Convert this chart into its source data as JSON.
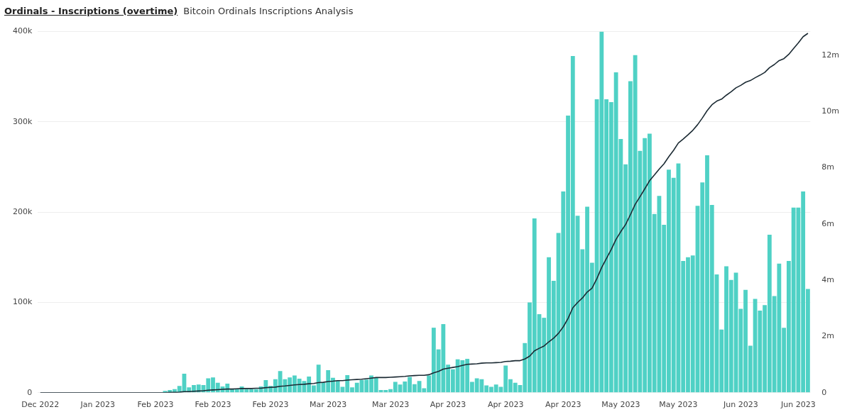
{
  "chart_data": {
    "type": "bar",
    "title": "Ordinals - Inscriptions (overtime)",
    "subtitle": "Bitcoin Ordinals Inscriptions Analysis",
    "categories": [
      "Dec 2022",
      null,
      null,
      null,
      null,
      null,
      null,
      null,
      null,
      null,
      null,
      null,
      "Jan 2023",
      null,
      null,
      null,
      null,
      null,
      null,
      null,
      null,
      null,
      null,
      null,
      "Feb 2023",
      null,
      null,
      null,
      null,
      null,
      null,
      null,
      null,
      null,
      null,
      null,
      "Feb 2023",
      null,
      null,
      null,
      null,
      null,
      null,
      null,
      null,
      null,
      null,
      null,
      "Feb 2023",
      null,
      null,
      null,
      null,
      null,
      null,
      null,
      null,
      null,
      null,
      null,
      "Mar 2023",
      null,
      null,
      null,
      null,
      null,
      null,
      null,
      null,
      null,
      null,
      null,
      null,
      "Mar 2023",
      null,
      null,
      null,
      null,
      null,
      null,
      null,
      null,
      null,
      null,
      null,
      "Apr 2023",
      null,
      null,
      null,
      null,
      null,
      null,
      null,
      null,
      null,
      null,
      null,
      "Apr 2023",
      null,
      null,
      null,
      null,
      null,
      null,
      null,
      null,
      null,
      null,
      null,
      "Apr 2023",
      null,
      null,
      null,
      null,
      null,
      null,
      null,
      null,
      null,
      null,
      null,
      "May 2023",
      null,
      null,
      null,
      null,
      null,
      null,
      null,
      null,
      null,
      null,
      null,
      "May 2023",
      null,
      null,
      null,
      null,
      null,
      null,
      null,
      null,
      null,
      null,
      null,
      null,
      "Jun 2023",
      null,
      null,
      null,
      null,
      null,
      null,
      null,
      null,
      null,
      null,
      null,
      "Jun 2023",
      null,
      null
    ],
    "series": [
      {
        "type": "bar",
        "color": "#4fd1c5",
        "values": [
          0,
          0,
          0,
          0,
          0,
          0,
          0,
          0,
          0,
          0,
          0,
          0,
          0,
          0,
          0,
          0,
          0,
          0,
          0,
          0,
          0,
          0,
          0,
          0,
          0,
          0,
          2000,
          3000,
          4000,
          7500,
          21000,
          6000,
          8500,
          9000,
          8500,
          16000,
          17000,
          11000,
          7000,
          10000,
          4000,
          4000,
          7000,
          4000,
          4000,
          4000,
          7000,
          14000,
          7500,
          15000,
          24000,
          15000,
          17000,
          19000,
          15500,
          13000,
          18000,
          8000,
          31000,
          11000,
          25000,
          16500,
          13500,
          6500,
          19500,
          6000,
          11000,
          14000,
          14500,
          19000,
          17000,
          3000,
          3000,
          4000,
          12000,
          9000,
          12500,
          17500,
          9500,
          13000,
          5000,
          19000,
          72000,
          48000,
          76000,
          31000,
          26000,
          37000,
          36000,
          37500,
          12000,
          16000,
          15000,
          8000,
          6500,
          9000,
          6500,
          30000,
          15000,
          11000,
          8500,
          55000,
          100000,
          193000,
          87000,
          83000,
          150000,
          124000,
          177000,
          223000,
          307000,
          373000,
          196000,
          159000,
          206000,
          144000,
          325000,
          400000,
          325000,
          322000,
          355000,
          281000,
          253000,
          345000,
          374000,
          268000,
          282000,
          287000,
          198000,
          218000,
          186000,
          247000,
          238000,
          254000,
          146000,
          150000,
          152000,
          207000,
          233000,
          263000,
          208000,
          131000,
          70000,
          140000,
          125000,
          133000,
          93000,
          114000,
          52000,
          104000,
          91000,
          97000,
          175000,
          107000,
          143000,
          72000,
          146000,
          205000,
          205000,
          223000,
          115000
        ]
      },
      {
        "type": "line",
        "axis": "y2",
        "color": "#1b2a33",
        "values": [
          0,
          0,
          0,
          0,
          0,
          0,
          0,
          0,
          0,
          0,
          0,
          0,
          0,
          0,
          0,
          0,
          0,
          0,
          0,
          0,
          0,
          0,
          0,
          0,
          0,
          0,
          0,
          10000,
          10000,
          20000,
          40000,
          40000,
          50000,
          60000,
          70000,
          90000,
          100000,
          110000,
          120000,
          130000,
          130000,
          140000,
          150000,
          150000,
          150000,
          160000,
          160000,
          180000,
          190000,
          200000,
          230000,
          240000,
          260000,
          280000,
          290000,
          300000,
          320000,
          330000,
          360000,
          370000,
          400000,
          410000,
          430000,
          430000,
          450000,
          460000,
          470000,
          480000,
          500000,
          520000,
          540000,
          540000,
          540000,
          550000,
          560000,
          570000,
          580000,
          600000,
          610000,
          620000,
          620000,
          640000,
          710000,
          760000,
          840000,
          870000,
          900000,
          930000,
          970000,
          1010000,
          1020000,
          1030000,
          1050000,
          1060000,
          1060000,
          1070000,
          1080000,
          1110000,
          1120000,
          1140000,
          1140000,
          1200000,
          1300000,
          1490000,
          1580000,
          1660000,
          1810000,
          1940000,
          2110000,
          2340000,
          2640000,
          3020000,
          3210000,
          3370000,
          3580000,
          3720000,
          4050000,
          4450000,
          4770000,
          5090000,
          5450000,
          5730000,
          5980000,
          6330000,
          6700000,
          6970000,
          7250000,
          7540000,
          7740000,
          7950000,
          8140000,
          8390000,
          8620000,
          8880000,
          9020000,
          9170000,
          9330000,
          9530000,
          9770000,
          10030000,
          10240000,
          10370000,
          10440000,
          10580000,
          10700000,
          10840000,
          10930000,
          11040000,
          11100000,
          11200000,
          11290000,
          11390000,
          11560000,
          11670000,
          11810000,
          11880000,
          12030000,
          12240000,
          12440000,
          12660000,
          12780000
        ]
      }
    ],
    "ylim": [
      0,
      400000
    ],
    "yticks": [
      {
        "value": 0,
        "label": "0"
      },
      {
        "value": 100000,
        "label": "100k"
      },
      {
        "value": 200000,
        "label": "200k"
      },
      {
        "value": 300000,
        "label": "300k"
      },
      {
        "value": 400000,
        "label": "400k"
      }
    ],
    "y2lim": [
      0,
      12840000
    ],
    "y2ticks": [
      {
        "value": 0,
        "label": "0"
      },
      {
        "value": 2000000,
        "label": "2m"
      },
      {
        "value": 4000000,
        "label": "4m"
      },
      {
        "value": 6000000,
        "label": "6m"
      },
      {
        "value": 8000000,
        "label": "8m"
      },
      {
        "value": 10000000,
        "label": "10m"
      },
      {
        "value": 12000000,
        "label": "12m"
      }
    ],
    "grid": "y",
    "marker": "none",
    "line_style": "solid"
  }
}
